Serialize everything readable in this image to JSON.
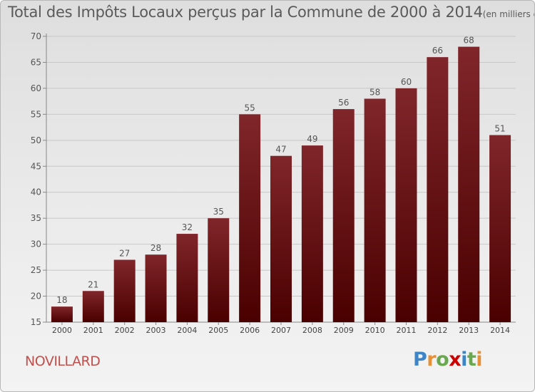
{
  "chart_data": {
    "type": "bar",
    "title": "Total des Impôts Locaux perçus par la Commune de 2000 à 2014",
    "subtitle": "(en milliers d'€)",
    "categories": [
      "2000",
      "2001",
      "2002",
      "2003",
      "2004",
      "2005",
      "2006",
      "2007",
      "2008",
      "2009",
      "2010",
      "2011",
      "2012",
      "2013",
      "2014"
    ],
    "values": [
      18,
      21,
      27,
      28,
      32,
      35,
      55,
      47,
      49,
      56,
      58,
      60,
      66,
      68,
      51
    ],
    "ylim": [
      15,
      70
    ],
    "yticks": [
      15,
      20,
      25,
      30,
      35,
      40,
      45,
      50,
      55,
      60,
      65,
      70
    ],
    "xlabel": "",
    "ylabel": "",
    "grid": true,
    "bar_color": "#7a1c22",
    "bar_color_dark": "#4a0000"
  },
  "commune": "NOVILLARD",
  "logo": {
    "letters": [
      "P",
      "r",
      "o",
      "x",
      "i",
      "t",
      "i"
    ],
    "colors": [
      "#3d85c6",
      "#e69138",
      "#6aa84f",
      "#cc0000",
      "#3d85c6",
      "#6aa84f",
      "#e69138"
    ]
  }
}
